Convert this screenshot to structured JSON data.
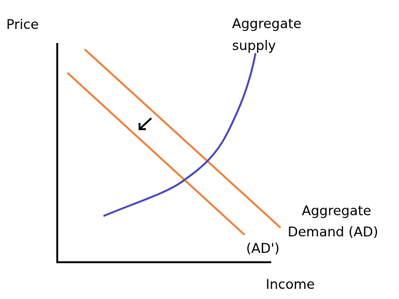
{
  "axes": {
    "y_label": "Price",
    "x_label": "Income"
  },
  "curves": [
    {
      "label_lines": [
        "Aggregate",
        "supply"
      ]
    },
    {
      "label_lines": [
        "Aggregate",
        "Demand (AD)"
      ]
    },
    {
      "label_lines": [
        "(AD')"
      ]
    }
  ]
}
